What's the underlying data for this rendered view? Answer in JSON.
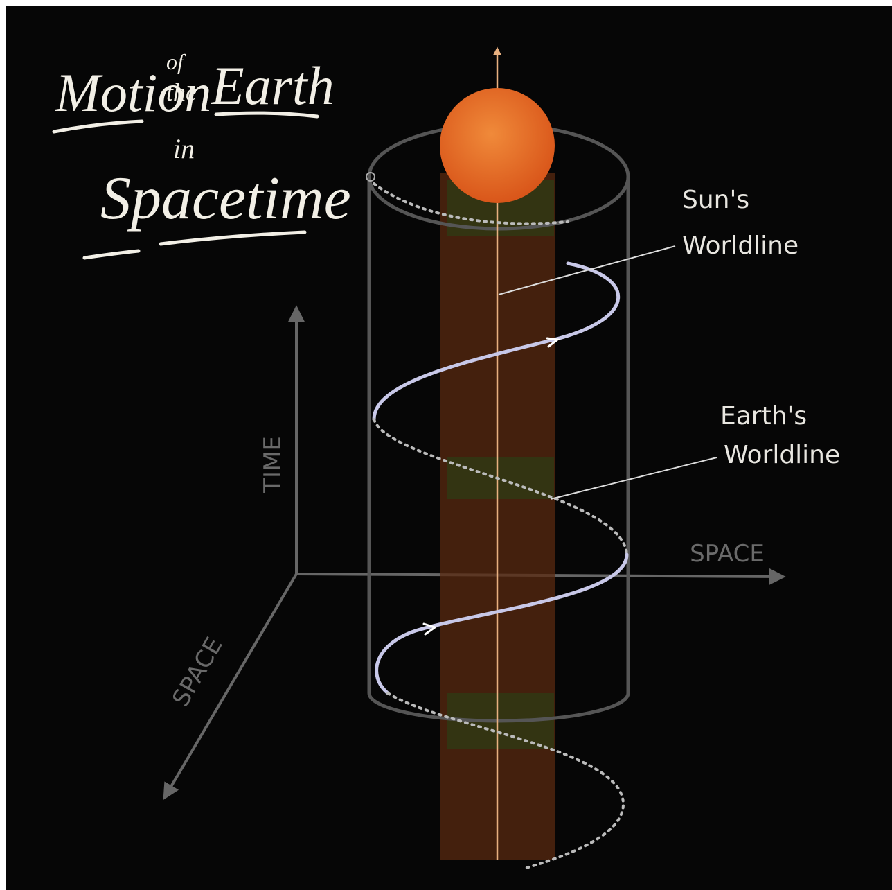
{
  "title": {
    "word1": "Motion",
    "small1": "of",
    "small2": "the",
    "word2": "Earth",
    "word3": "in",
    "word4": "Spacetime"
  },
  "labels": {
    "sun": [
      "Sun's",
      "Worldline"
    ],
    "earth": [
      "Earth's",
      "Worldline"
    ]
  },
  "axes": {
    "time": "TIME",
    "space_horizontal": "SPACE",
    "space_depth": "SPACE"
  }
}
